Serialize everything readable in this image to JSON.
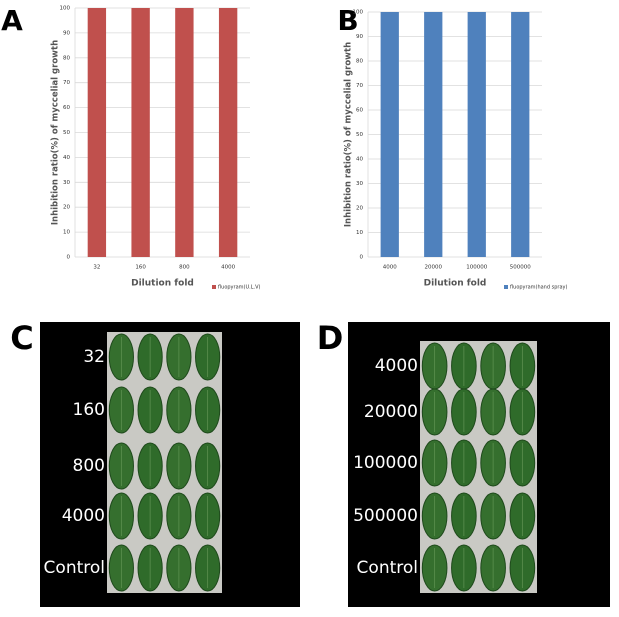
{
  "chart_data": [
    {
      "type": "bar",
      "panel_label": "A",
      "y_label": "Inhibition ratio(%) of myccelial growth",
      "x_label": "Dilution fold",
      "categories": [
        "32",
        "160",
        "800",
        "4000"
      ],
      "series": [
        {
          "name": "fluopyram(U.L.V)",
          "color": "#c0504d",
          "values": [
            100,
            100,
            100,
            100
          ]
        }
      ],
      "ylim": [
        0,
        100
      ],
      "yticks": [
        0,
        10,
        20,
        30,
        40,
        50,
        60,
        70,
        80,
        90,
        100
      ],
      "grid": true,
      "legend": "bottom-right"
    },
    {
      "type": "bar",
      "panel_label": "B",
      "y_label": "Inhibition ratio(%) of myccelial growth",
      "x_label": "Dilution fold",
      "categories": [
        "4000",
        "20000",
        "100000",
        "500000"
      ],
      "series": [
        {
          "name": "fluopyram(hand spray)",
          "color": "#4f81bd",
          "values": [
            100,
            100,
            100,
            100
          ]
        }
      ],
      "ylim": [
        0,
        100
      ],
      "yticks": [
        0,
        10,
        20,
        30,
        40,
        50,
        60,
        70,
        80,
        90,
        100
      ],
      "grid": true,
      "legend": "bottom-right"
    }
  ],
  "photos": [
    {
      "panel_label": "C",
      "labels": [
        "32",
        "160",
        "800",
        "4000",
        "Control"
      ]
    },
    {
      "panel_label": "D",
      "labels": [
        "4000",
        "20000",
        "100000",
        "500000",
        "Control"
      ]
    }
  ]
}
